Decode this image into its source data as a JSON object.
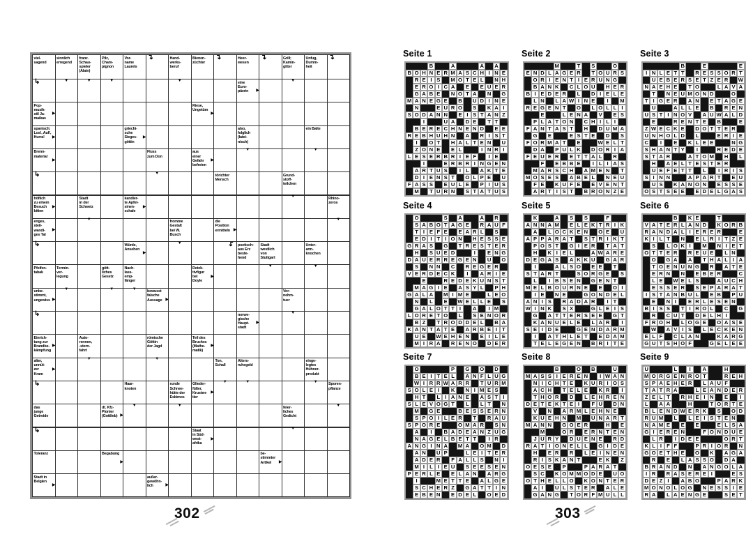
{
  "left_page": {
    "page_number": "302",
    "grid": {
      "rows": 19,
      "cols": 14,
      "clues": [
        {
          "r": 0,
          "c": 0,
          "t": "viel-\nsagend"
        },
        {
          "r": 0,
          "c": 1,
          "t": "sinnlich\nerregend"
        },
        {
          "r": 0,
          "c": 2,
          "t": "franz.\nSchau-\nspieler\n(Alain)"
        },
        {
          "r": 0,
          "c": 3,
          "t": "Pilz,\nCham-\npignon"
        },
        {
          "r": 0,
          "c": 4,
          "t": "Vor-\nname\nLaurels"
        },
        {
          "r": 0,
          "c": 6,
          "t": "Hand-\nwerks-\nberuf"
        },
        {
          "r": 0,
          "c": 7,
          "t": "Bienen-\nzüchter"
        },
        {
          "r": 0,
          "c": 9,
          "t": "Heer-\nwesen"
        },
        {
          "r": 0,
          "c": 11,
          "t": "Grill;\nKamin-\ngitter"
        },
        {
          "r": 0,
          "c": 12,
          "t": "Unfug,\nDumm-\nheit"
        },
        {
          "r": 1,
          "c": 9,
          "t": "eine\nEuro-\npäerin",
          "a": "r"
        },
        {
          "r": 2,
          "c": 0,
          "t": "Pop-\nmusik-\nstil Ja-\nmaikas",
          "a": "r"
        },
        {
          "r": 2,
          "c": 7,
          "t": "Riese,\nUngetüm",
          "a": "r"
        },
        {
          "r": 3,
          "c": 0,
          "t": "spanisch:\nLos!, Auf!,\nHurra!",
          "a": "r"
        },
        {
          "r": 3,
          "c": 4,
          "t": "griechi-\nsche\nSieges-\ngöttin",
          "a": "r"
        },
        {
          "r": 3,
          "c": 9,
          "t": "also,\nfolglich\n(latei-\nnisch)"
        },
        {
          "r": 3,
          "c": 12,
          "t": "ein Balte"
        },
        {
          "r": 4,
          "c": 0,
          "t": "Brenn-\nmaterial",
          "a": "r"
        },
        {
          "r": 4,
          "c": 5,
          "t": "Fluss\nzum Don"
        },
        {
          "r": 4,
          "c": 7,
          "t": "aus\neiner\nGefahr\nbefreien",
          "a": "r"
        },
        {
          "r": 5,
          "c": 8,
          "t": "törichter\nMensch"
        },
        {
          "r": 5,
          "c": 11,
          "t": "Grund-\nstoff-\nteilchen"
        },
        {
          "r": 6,
          "c": 0,
          "t": "höflich\nzu einem\nBesuch\nbitten",
          "a": "r"
        },
        {
          "r": 6,
          "c": 2,
          "t": "Stadt\nin der\nSchweiz"
        },
        {
          "r": 6,
          "c": 4,
          "t": "kandier-\nte Apfel-\nsinen-\nschale",
          "a": "r"
        },
        {
          "r": 6,
          "c": 13,
          "t": "Rhino-\nzeros"
        },
        {
          "r": 7,
          "c": 0,
          "t": "enges,\nsteil-\nwandi-\nges Tal",
          "a": "r"
        },
        {
          "r": 7,
          "c": 6,
          "t": "fromme\nGestalt\nbei W.\nBusch"
        },
        {
          "r": 7,
          "c": 8,
          "t": "die\nPosition\nermitteln",
          "a": "r"
        },
        {
          "r": 8,
          "c": 4,
          "t": "Würde,\nAnsehen",
          "a": "r"
        },
        {
          "r": 8,
          "c": 9,
          "t": "poetisch:\naus Erz\nbeste-\nhend"
        },
        {
          "r": 8,
          "c": 10,
          "t": "Stadt\nwestlich\nvon\nStuttgart"
        },
        {
          "r": 8,
          "c": 12,
          "t": "Unter-\narm-\nknochen"
        },
        {
          "r": 9,
          "c": 0,
          "t": "Pfeifen-\ntabak"
        },
        {
          "r": 9,
          "c": 1,
          "t": "Termin-\nver-\nlegung"
        },
        {
          "r": 9,
          "c": 3,
          "t": "gött-\nliches\nGesetz"
        },
        {
          "r": 9,
          "c": 4,
          "t": "Nach-\nlass-\nemp-\nfänger"
        },
        {
          "r": 9,
          "c": 7,
          "t": "Detek-\ntivfigur\nbei\nDoyle",
          "a": "r"
        },
        {
          "r": 10,
          "c": 0,
          "t": "unbe-\nstimmt,\nungewiss",
          "a": "r"
        },
        {
          "r": 10,
          "c": 5,
          "t": "bewusst\nfalsche\nAussage",
          "a": "r"
        },
        {
          "r": 10,
          "c": 11,
          "t": "Vor-\nnehm-\ntuer"
        },
        {
          "r": 11,
          "c": 9,
          "t": "norwe-\ngische\nHaupt-\nstadt",
          "a": "r"
        },
        {
          "r": 12,
          "c": 0,
          "t": "Einrich-\ntung zur\nBrandbe-\nkämpfung",
          "a": "r"
        },
        {
          "r": 12,
          "c": 2,
          "t": "Auto-\nrennen,\n-stern-\nfahrt"
        },
        {
          "r": 12,
          "c": 5,
          "t": "römische\nGöttin\nder Jagd"
        },
        {
          "r": 12,
          "c": 7,
          "t": "Teil des\nBruches\n(Mathe-\nmatik)",
          "a": "r"
        },
        {
          "r": 13,
          "c": 0,
          "t": "alter,\nunnüt-\nzer\nKram",
          "a": "r"
        },
        {
          "r": 13,
          "c": 8,
          "t": "Ton,\nSchall"
        },
        {
          "r": 13,
          "c": 9,
          "t": "Alters-\nruhegeld"
        },
        {
          "r": 13,
          "c": 12,
          "t": "einge-\nlegtes\nHühner-\nprodukt"
        },
        {
          "r": 14,
          "c": 4,
          "t": "Haar-\nknoten"
        },
        {
          "r": 14,
          "c": 6,
          "t": "runde\nSchnee-\nhütte der\nEskimos"
        },
        {
          "r": 14,
          "c": 7,
          "t": "Glieder-\nfüßer,\nKrusten-\ntier",
          "a": "r"
        },
        {
          "r": 14,
          "c": 13,
          "t": "Sporen-\npflanze"
        },
        {
          "r": 15,
          "c": 0,
          "t": "das\njunge\nGetreide"
        },
        {
          "r": 15,
          "c": 3,
          "t": "dt. Kfz-\nPionier\n(Gottlieb)",
          "a": "r"
        },
        {
          "r": 15,
          "c": 11,
          "t": "feier-\nliches\nGedicht"
        },
        {
          "r": 16,
          "c": 7,
          "t": "Staat\nin Süd-\nwest-\nafrika",
          "a": "r"
        },
        {
          "r": 17,
          "c": 0,
          "t": "Toleranz"
        },
        {
          "r": 17,
          "c": 3,
          "t": "Begabung",
          "a": "r"
        },
        {
          "r": 17,
          "c": 10,
          "t": "be-\nstimmter\nArtikel",
          "a": "r"
        },
        {
          "r": 18,
          "c": 0,
          "t": "Stadt in\nBelgien",
          "a": "r"
        },
        {
          "r": 18,
          "c": 5,
          "t": "außer-\ngewöhn-\nlich",
          "a": "r"
        }
      ],
      "down_arrows": [
        [
          1,
          1
        ],
        [
          1,
          2
        ],
        [
          1,
          3
        ],
        [
          1,
          6
        ],
        [
          1,
          11
        ],
        [
          4,
          9
        ],
        [
          4,
          12
        ],
        [
          5,
          5
        ],
        [
          6,
          11
        ],
        [
          7,
          2
        ],
        [
          7,
          13
        ],
        [
          8,
          6
        ],
        [
          9,
          10
        ],
        [
          9,
          12
        ],
        [
          10,
          1
        ],
        [
          10,
          3
        ],
        [
          10,
          4
        ],
        [
          11,
          11
        ],
        [
          13,
          2
        ],
        [
          13,
          5
        ],
        [
          14,
          8
        ],
        [
          14,
          9
        ],
        [
          14,
          12
        ],
        [
          15,
          4
        ],
        [
          15,
          6
        ],
        [
          15,
          13
        ],
        [
          16,
          11
        ]
      ],
      "bent_arrows": [
        {
          "r": 0,
          "c": 5,
          "kind": "top"
        },
        {
          "r": 0,
          "c": 8,
          "kind": "top"
        },
        {
          "r": 0,
          "c": 10,
          "kind": "top"
        },
        {
          "r": 0,
          "c": 13,
          "kind": "top"
        },
        {
          "r": 1,
          "c": 0,
          "kind": "left"
        },
        {
          "r": 5,
          "c": 0,
          "kind": "left"
        },
        {
          "r": 8,
          "c": 0,
          "kind": "left"
        },
        {
          "r": 11,
          "c": 0,
          "kind": "left"
        },
        {
          "r": 14,
          "c": 0,
          "kind": "left"
        },
        {
          "r": 16,
          "c": 0,
          "kind": "left"
        },
        {
          "r": 8,
          "c": 8,
          "kind": "topflip"
        }
      ]
    }
  },
  "right_page": {
    "page_number": "303",
    "solutions": [
      {
        "label": "Seite 1",
        "rows": [
          "###B##A###A#A#",
          "BOHNERMASCHINE",
          "#REIS#MOTEL#NH",
          "#EROICA#E#EUER",
          "#GABE#NOTA#N#G",
          "MANEGE#B#UDINE",
          "#N##EURO#S#KAI",
          "SODANN#EISTANZ",
          "##I##UA#DE#TT#",
          "#BERECHNEND#EE",
          "REBHUHN#A#RIST",
          "#I#OT#HALTEN#U",
          "#ZONE#EL##INRI",
          "LESERBRIEF#IE#",
          "##I##ERBRINGEN",
          "#ARTUS#IL#AKTE",
          "#DIENST#OLPE#U",
          "FASS#EULE#PIUS",
          "#M#TURN#STATUS"
        ]
      },
      {
        "label": "Seite 2",
        "rows": [
          "####M##T#S##O#",
          "ENDLAGER#TOURS",
          "#ORIENTIERUNG#",
          "#BANK#CLOU#HER",
          "BIEDER#L#DIELE",
          "#LN#LAWINE#I#M",
          "REGENT#O#LOLLI",
          "##E##LENA#V#ES",
          "#PLATON#CHILI#",
          "FANTAST#H#DUMA",
          "#G#E##ESTE#D#S",
          "FORMAT#E##WELT",
          "#DA#PULK#DORIA",
          "FEUER#ETTAL#R#",
          "##F#EBBE#ILIAS",
          "#MARSCH#AMEN#T",
          "MOSES#ABEL#NEU",
          "#FE#KUFE#EVENT",
          "#ARTIST#BRONZE"
        ]
      },
      {
        "label": "Seite 3",
        "rows": [
          "#####B##E####E",
          "INLETT#RESSORT",
          "#UEBERSETZER#W",
          "NAEHE#TO##LAVA",
          "#T#NEUMOND##O#",
          "TIGER#AN#ETAGE",
          "#U##ALLE#B#REN",
          "USTINOV#AUWALD",
          "#E##RENTE#B##E",
          "ZWECKE#DOTTER#",
          "UNHOLD#L##ERIE",
          "C#I#E#KLEE##NG",
          "SHANTY#I##REDE",
          "STAR##ATOM#H#L",
          "#H#AELTESTER##",
          "#UEFETT#L#IRIS",
          "SINN##APART#EU",
          "#US#KANON#ESSE",
          "OSTSEE#EDELGAS"
        ]
      },
      {
        "label": "Seite 4",
        "rows": [
          "#O###S#A##A#R#",
          "#SABOTAGE#RAUF",
          "#TIEFE#EARL#S#",
          "#EDITION#HESSE",
          "GRAS#G#TRESTER",
          "#H#SUED##I#ENG",
          "DAUERREGEN#U#O",
          "#S#NN#C#REGER#",
          "VERDECK#I#ARIE",
          "##E##REDEKUNST",
          "#MAGIE#ASYL#PH",
          "GALA#MIME##LEO",
          "#N#L#E#WELLE#S",
          "#GALOTTI#A#IM#",
          "LORETO#L#SENOR",
          "#BZ#TRODDEL#BA",
          "KANTATE#ARBEIT",
          "#UE#WEHEN#EILE",
          "#MIRA#RENO#DER"
        ]
      },
      {
        "label": "Seite 5",
        "rows": [
          "#K##A#S#S##F##",
          "ANNAM#ELEKTRIK",
          "#A#LOCKEN#OE#U",
          "APPARAT#STRIKT",
          "#POST#GIER#TAT",
          "#H#KIEL##AWARE",
          "DEGAS#AKKU#GAR",
          "#I##ALSO#EE#T#",
          "START##SORGE#S",
          "#L#IBSEN#GENT#",
          "MELBOURNE#E#OI",
          "#IE#NE##GONDEL",
          "ANIS#RADAR#IT#",
          "WINK#SX##GLEIS",
          "#G#ATTERSEE#GT",
          "#KANUELE#LAR#I",
          "SEIDE##GENDARM",
          "#I#ATHLET#EDAM",
          "#TELEGEN#BRITE"
        ]
      },
      {
        "label": "Seite 6",
        "rows": [
          "####B#KE##T###",
          "VATERLAND#KORB",
          "RANDALIERER##E",
          "KILT#N#ELRITZE",
          "#S#LOKI#M#NIET",
          "OTTER#REUE#LN#",
          "#O#GA#A#THALIA",
          "#TOENUNG#R#ATE",
          "#ERN#N#EBER##C",
          "#LE#WELS##AUCH",
          "#ESSER#SEPARAT",
          "ISTANBUL#EB#PU",
          "#E#NI#ERLESEN#",
          "BISS#TIROL#C#G",
          "#R#CUT#DELHI##",
          "FROH#LOGE#OASE",
          "#W#AVIS#LECKEN",
          "ELF#CLAN##KARG",
          "GUTSHOF##GELEE"
        ]
      },
      {
        "label": "Seite 7",
        "rows": [
          "#O####P#G#O#D#",
          "#BEITEL#ANFLUG",
          "#WIRRWARR#TURM",
          "SOLEI#K#NIMES#",
          "#HT#LIANE#ASTI",
          "SLEVOGT#L#LT#N",
          "#M#GE##BESSERN",
          "#SPOILER#T#RAU",
          "SPORE##OMAR#SN",
          "#A#I#BADEANZUG",
          "#NAGELBETT#IR#",
          "ANGINA#MA#OM#D",
          "#AN#UP##LEITER",
          "#ADER#FALLS#NI",
          "#MILIEU#SEESEN",
          "PERLE#ELAN#ARG",
          "#I##METTE#ALGE",
          "#SCHERZ#GATTIN",
          "#EBEN#EDEL#OED"
        ]
      },
      {
        "label": "Seite 8",
        "rows": [
          "####B##O#B##U#",
          "MASSIEREN#IWAN",
          "#NICHTE#KURIOS",
          "#ACH#TELE#KR#I",
          "#THOR#D#LEHREN",
          "DETEKTEI#FU#DN",
          "#V#N#ARMLEHNE#",
          "#KUEHN#M#UNART",
          "MANN#GOER##H#E",
          "##M##OR#ERNTEN",
          "#JURY#DUENE#RD",
          "RATIONELL#GIDE",
          "#H#ER#R#LEINEN",
          "#RISKANT##EK#Z",
          "OESE#P##PARAT#",
          "#SC#KOMMODE#UO",
          "OTHELLO#KONTER",
          "#AI#ULSTER#ALE",
          "#GANG#TORFMULL"
        ]
      },
      {
        "label": "Seite 9",
        "rows": [
          "U###L#I#A##H##",
          "MORGENROT##REH",
          "SPAEHER#LAUF##",
          "TATRA##LEANDER",
          "ZELT#RHEIN#E#I",
          "L#AA##H##TORTE",
          "BLENDWERK#S#OD",
          "RUM#L#LEISTEN#",
          "NAME#E#E##ELSA",
          "GIEREN##FONDUE",
          "#LR#IDEE###ORT",
          "KLIFF##PRIOR#N",
          "GOETHE#O#K#AGA",
          "#R#E#LASSO#DA#",
          "BRAND#N#ANGOLA",
          "IR#RASEREI##ES",
          "DEZI#ABO##PARK",
          "MONOLOG#NESSIE",
          "RA#LAENGE##SET"
        ]
      }
    ]
  }
}
